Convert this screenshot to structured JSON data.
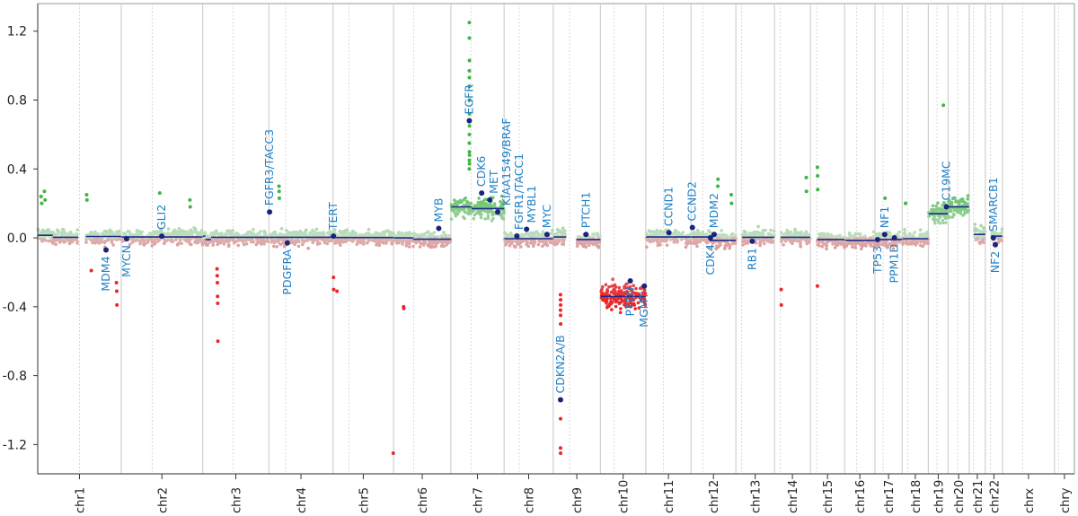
{
  "chart_data": {
    "type": "scatter",
    "title": "",
    "xlabel": "",
    "ylabel": "",
    "ylim": [
      -1.37,
      1.36
    ],
    "yticks": [
      "1.2",
      "0.8",
      "0.4",
      "0.0",
      "-0.4",
      "-0.8",
      "-1.2"
    ],
    "ytick_values": [
      1.2,
      0.8,
      0.4,
      0.0,
      -0.4,
      -0.8,
      -1.2
    ],
    "grid": "vertical chromosome boundaries (solid) and centromeres (dashed)",
    "colors": {
      "gain": "#3fb543",
      "loss": "#e8282b",
      "segment": "#1c2a8a",
      "gene_dot": "#1a237e",
      "gene_label": "#1f80c6"
    },
    "chromosomes": [
      {
        "name": "chr1",
        "length_mb": 249.3,
        "centromere_mb": 125
      },
      {
        "name": "chr2",
        "length_mb": 243.2,
        "centromere_mb": 93
      },
      {
        "name": "chr3",
        "length_mb": 198.0,
        "centromere_mb": 91
      },
      {
        "name": "chr4",
        "length_mb": 191.2,
        "centromere_mb": 50
      },
      {
        "name": "chr5",
        "length_mb": 180.9,
        "centromere_mb": 48
      },
      {
        "name": "chr6",
        "length_mb": 171.1,
        "centromere_mb": 60
      },
      {
        "name": "chr7",
        "length_mb": 159.1,
        "centromere_mb": 60
      },
      {
        "name": "chr8",
        "length_mb": 146.4,
        "centromere_mb": 45
      },
      {
        "name": "chr9",
        "length_mb": 141.2,
        "centromere_mb": 49
      },
      {
        "name": "chr10",
        "length_mb": 135.5,
        "centromere_mb": 40
      },
      {
        "name": "chr11",
        "length_mb": 135.0,
        "centromere_mb": 53
      },
      {
        "name": "chr12",
        "length_mb": 133.9,
        "centromere_mb": 35
      },
      {
        "name": "chr13",
        "length_mb": 115.2,
        "centromere_mb": 17
      },
      {
        "name": "chr14",
        "length_mb": 107.3,
        "centromere_mb": 17
      },
      {
        "name": "chr15",
        "length_mb": 102.5,
        "centromere_mb": 19
      },
      {
        "name": "chr16",
        "length_mb": 90.4,
        "centromere_mb": 36
      },
      {
        "name": "chr17",
        "length_mb": 81.2,
        "centromere_mb": 24
      },
      {
        "name": "chr18",
        "length_mb": 78.1,
        "centromere_mb": 17
      },
      {
        "name": "chr19",
        "length_mb": 59.1,
        "centromere_mb": 26
      },
      {
        "name": "chr20",
        "length_mb": 63.0,
        "centromere_mb": 28
      },
      {
        "name": "chr21",
        "length_mb": 48.1,
        "centromere_mb": 13
      },
      {
        "name": "chr22",
        "length_mb": 51.3,
        "centromere_mb": 15
      },
      {
        "name": "chrx",
        "length_mb": 155.3,
        "centromere_mb": 60
      },
      {
        "name": "chry",
        "length_mb": 59.4,
        "centromere_mb": 12
      }
    ],
    "segments": [
      {
        "chr": "chr1",
        "start": 1,
        "end": 45,
        "value": 0.015
      },
      {
        "chr": "chr1",
        "start": 45,
        "end": 121,
        "value": 0.003
      },
      {
        "chr": "chr1",
        "start": 144,
        "end": 249,
        "value": 0.008
      },
      {
        "chr": "chr2",
        "start": 1,
        "end": 243,
        "value": 0.005
      },
      {
        "chr": "chr3",
        "start": 1,
        "end": 8,
        "value": 0.01
      },
      {
        "chr": "chr3",
        "start": 8,
        "end": 25,
        "value": -0.01
      },
      {
        "chr": "chr3",
        "start": 25,
        "end": 198,
        "value": 0.003
      },
      {
        "chr": "chr4",
        "start": 1,
        "end": 191,
        "value": 0.003
      },
      {
        "chr": "chr5",
        "start": 1,
        "end": 181,
        "value": 0.002
      },
      {
        "chr": "chr6",
        "start": 1,
        "end": 58,
        "value": 0.0
      },
      {
        "chr": "chr6",
        "start": 58,
        "end": 171,
        "value": -0.008
      },
      {
        "chr": "chr7",
        "start": 1,
        "end": 62,
        "value": 0.18
      },
      {
        "chr": "chr7",
        "start": 62,
        "end": 159,
        "value": 0.17
      },
      {
        "chr": "chr8",
        "start": 1,
        "end": 146,
        "value": -0.005
      },
      {
        "chr": "chr9",
        "start": 1,
        "end": 39,
        "value": 0.005
      },
      {
        "chr": "chr9",
        "start": 70,
        "end": 141,
        "value": -0.01
      },
      {
        "chr": "chr10",
        "start": 1,
        "end": 135,
        "value": -0.34
      },
      {
        "chr": "chr11",
        "start": 1,
        "end": 135,
        "value": 0.005
      },
      {
        "chr": "chr12",
        "start": 1,
        "end": 55,
        "value": 0.005
      },
      {
        "chr": "chr12",
        "start": 55,
        "end": 134,
        "value": -0.015
      },
      {
        "chr": "chr13",
        "start": 19,
        "end": 115,
        "value": 0.003
      },
      {
        "chr": "chr14",
        "start": 19,
        "end": 107,
        "value": 0.003
      },
      {
        "chr": "chr15",
        "start": 20,
        "end": 102,
        "value": -0.01
      },
      {
        "chr": "chr16",
        "start": 1,
        "end": 90,
        "value": -0.015
      },
      {
        "chr": "chr17",
        "start": 1,
        "end": 81,
        "value": -0.01
      },
      {
        "chr": "chr18",
        "start": 1,
        "end": 78,
        "value": -0.005
      },
      {
        "chr": "chr19",
        "start": 1,
        "end": 59,
        "value": 0.14
      },
      {
        "chr": "chr20",
        "start": 1,
        "end": 63,
        "value": 0.18
      },
      {
        "chr": "chr21",
        "start": 14,
        "end": 48,
        "value": 0.02
      },
      {
        "chr": "chr22",
        "start": 17,
        "end": 51,
        "value": 0.01
      }
    ],
    "outliers": [
      [
        "chr1",
        10,
        0.24
      ],
      [
        "chr1",
        12,
        0.2
      ],
      [
        "chr1",
        20,
        0.27
      ],
      [
        "chr1",
        22,
        0.22
      ],
      [
        "chr1",
        146,
        0.25
      ],
      [
        "chr1",
        147,
        0.22
      ],
      [
        "chr1",
        235,
        -0.26
      ],
      [
        "chr1",
        236,
        -0.31
      ],
      [
        "chr1",
        236.5,
        -0.39
      ],
      [
        "chr1",
        160,
        -0.19
      ],
      [
        "chr2",
        115,
        0.26
      ],
      [
        "chr2",
        205,
        0.22
      ],
      [
        "chr2",
        206,
        0.18
      ],
      [
        "chr3",
        43,
        -0.18
      ],
      [
        "chr3",
        43.5,
        -0.22
      ],
      [
        "chr3",
        44,
        -0.26
      ],
      [
        "chr3",
        44.5,
        -0.34
      ],
      [
        "chr3",
        45,
        -0.38
      ],
      [
        "chr3",
        45.5,
        -0.6
      ],
      [
        "chr4",
        30,
        0.3
      ],
      [
        "chr4",
        30.5,
        0.27
      ],
      [
        "chr4",
        31,
        0.23
      ],
      [
        "chr5",
        1.5,
        -0.23
      ],
      [
        "chr5",
        2,
        -0.3
      ],
      [
        "chr5",
        12,
        -0.31
      ],
      [
        "chr5",
        180,
        -1.25
      ],
      [
        "chr6",
        30,
        -0.4
      ],
      [
        "chr6",
        30.5,
        -0.41
      ],
      [
        "chr7",
        55,
        0.4
      ],
      [
        "chr7",
        55.2,
        0.45
      ],
      [
        "chr7",
        55.4,
        0.5
      ],
      [
        "chr7",
        55.1,
        0.55
      ],
      [
        "chr7",
        55.3,
        0.6
      ],
      [
        "chr7",
        55.5,
        0.65
      ],
      [
        "chr7",
        55.6,
        0.72
      ],
      [
        "chr7",
        55.2,
        0.8
      ],
      [
        "chr7",
        55.4,
        0.88
      ],
      [
        "chr7",
        55.3,
        0.93
      ],
      [
        "chr7",
        55.1,
        0.97
      ],
      [
        "chr7",
        55.5,
        1.03
      ],
      [
        "chr7",
        55.3,
        1.16
      ],
      [
        "chr7",
        55.2,
        1.25
      ],
      [
        "chr7",
        55.6,
        0.43
      ],
      [
        "chr7",
        55.7,
        0.48
      ],
      [
        "chr9",
        21.8,
        -0.33
      ],
      [
        "chr9",
        22,
        -0.36
      ],
      [
        "chr9",
        22.2,
        -0.39
      ],
      [
        "chr9",
        21.9,
        -0.42
      ],
      [
        "chr9",
        22.1,
        -0.45
      ],
      [
        "chr9",
        22.3,
        -0.5
      ],
      [
        "chr9",
        22.1,
        -1.05
      ],
      [
        "chr9",
        21.9,
        -1.22
      ],
      [
        "chr9",
        22.2,
        -1.25
      ],
      [
        "chr12",
        80,
        0.3
      ],
      [
        "chr12",
        80.5,
        0.34
      ],
      [
        "chr12",
        120,
        0.25
      ],
      [
        "chr12",
        121,
        0.2
      ],
      [
        "chr14",
        20,
        -0.3
      ],
      [
        "chr14",
        20.5,
        -0.39
      ],
      [
        "chr14",
        95,
        0.35
      ],
      [
        "chr14",
        95.5,
        0.27
      ],
      [
        "chr15",
        21,
        0.41
      ],
      [
        "chr15",
        21.5,
        0.36
      ],
      [
        "chr15",
        22,
        0.28
      ],
      [
        "chr15",
        21,
        -0.28
      ],
      [
        "chr17",
        30,
        0.23
      ],
      [
        "chr18",
        10,
        0.2
      ],
      [
        "chr19",
        45,
        0.77
      ]
    ],
    "genes": [
      {
        "name": "MDM4",
        "chr": "chr1",
        "mb": 204,
        "value": -0.07,
        "label": "below"
      },
      {
        "name": "MYCN",
        "chr": "chr2",
        "mb": 16,
        "value": -0.005,
        "label": "below"
      },
      {
        "name": "GLI2",
        "chr": "chr2",
        "mb": 121,
        "value": 0.01,
        "label": "above"
      },
      {
        "name": "FGFR3/TACC3",
        "chr": "chr4",
        "mb": 1.8,
        "value": 0.15,
        "label": "above"
      },
      {
        "name": "PDGFRA",
        "chr": "chr4",
        "mb": 55,
        "value": -0.03,
        "label": "below"
      },
      {
        "name": "TERT",
        "chr": "chr5",
        "mb": 1.3,
        "value": 0.01,
        "label": "above"
      },
      {
        "name": "MYB",
        "chr": "chr6",
        "mb": 135,
        "value": 0.055,
        "label": "above"
      },
      {
        "name": "EGFR",
        "chr": "chr7",
        "mb": 55.1,
        "value": 0.68,
        "label": "above"
      },
      {
        "name": "CDK6",
        "chr": "chr7",
        "mb": 92,
        "value": 0.26,
        "label": "above"
      },
      {
        "name": "MET",
        "chr": "chr7",
        "mb": 116,
        "value": 0.22,
        "label": "above"
      },
      {
        "name": "KIAA1549/BRAF",
        "chr": "chr7",
        "mb": 140,
        "value": 0.15,
        "label": "above"
      },
      {
        "name": "FGFR1/TACC1",
        "chr": "chr8",
        "mb": 38,
        "value": 0.01,
        "label": "above"
      },
      {
        "name": "MYBL1",
        "chr": "chr8",
        "mb": 67,
        "value": 0.05,
        "label": "above"
      },
      {
        "name": "MYC",
        "chr": "chr8",
        "mb": 128,
        "value": 0.02,
        "label": "above"
      },
      {
        "name": "CDKN2A/B",
        "chr": "chr9",
        "mb": 22,
        "value": -0.94,
        "label": "above"
      },
      {
        "name": "PTCH1",
        "chr": "chr9",
        "mb": 98,
        "value": 0.02,
        "label": "above"
      },
      {
        "name": "PTEN",
        "chr": "chr10",
        "mb": 89,
        "value": -0.25,
        "label": "below"
      },
      {
        "name": "MGMT",
        "chr": "chr10",
        "mb": 131,
        "value": -0.28,
        "label": "below"
      },
      {
        "name": "CCND1",
        "chr": "chr11",
        "mb": 69,
        "value": 0.03,
        "label": "above"
      },
      {
        "name": "CCND2",
        "chr": "chr12",
        "mb": 4,
        "value": 0.06,
        "label": "above"
      },
      {
        "name": "CDK4",
        "chr": "chr12",
        "mb": 58,
        "value": 0.0,
        "label": "below"
      },
      {
        "name": "MDM2",
        "chr": "chr12",
        "mb": 69,
        "value": 0.02,
        "label": "above"
      },
      {
        "name": "RB1",
        "chr": "chr13",
        "mb": 49,
        "value": -0.02,
        "label": "below"
      },
      {
        "name": "TP53",
        "chr": "chr17",
        "mb": 7.5,
        "value": -0.01,
        "label": "below"
      },
      {
        "name": "NF1",
        "chr": "chr17",
        "mb": 29,
        "value": 0.02,
        "label": "above"
      },
      {
        "name": "PPM1D",
        "chr": "chr17",
        "mb": 58,
        "value": 0.0,
        "label": "below"
      },
      {
        "name": "C19MC",
        "chr": "chr19",
        "mb": 54,
        "value": 0.18,
        "label": "above"
      },
      {
        "name": "NF2",
        "chr": "chr22",
        "mb": 30,
        "value": -0.04,
        "label": "below"
      },
      {
        "name": "SMARCB1",
        "chr": "chr22",
        "mb": 24,
        "value": 0.0,
        "label": "above"
      }
    ]
  }
}
